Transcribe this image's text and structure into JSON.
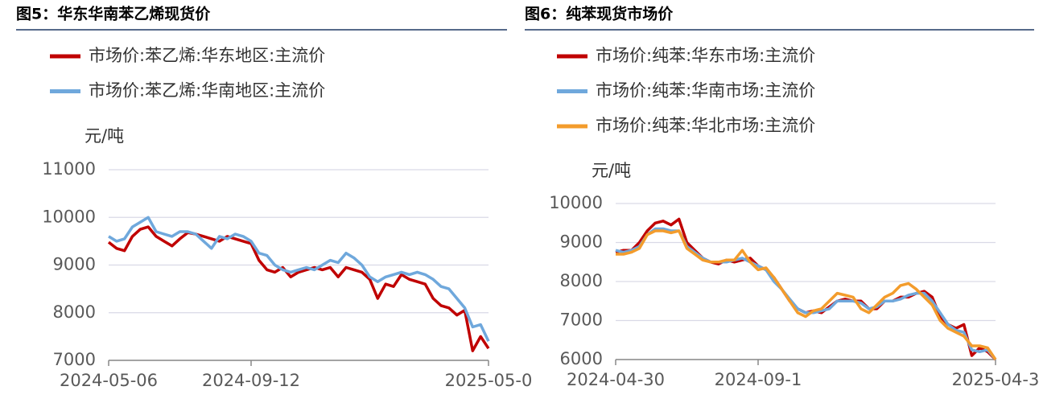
{
  "chart_data": [
    {
      "type": "line",
      "title": "图5：华东华南苯乙烯现货价",
      "y_label": "元/吨",
      "categories": [
        "2024-05-06",
        null,
        null,
        null,
        null,
        null,
        null,
        null,
        null,
        null,
        null,
        null,
        null,
        null,
        null,
        null,
        null,
        null,
        "2024-09-12",
        null,
        null,
        null,
        null,
        null,
        null,
        null,
        null,
        null,
        null,
        null,
        null,
        null,
        null,
        null,
        null,
        null,
        null,
        null,
        null,
        null,
        null,
        null,
        null,
        null,
        null,
        null,
        null,
        null,
        "2025-05-0"
      ],
      "series": [
        {
          "name": "市场价:苯乙烯:华东地区:主流价",
          "color": "#c00000",
          "values": [
            9480,
            9350,
            9300,
            9600,
            9750,
            9800,
            9600,
            9500,
            9400,
            9550,
            9680,
            9650,
            9600,
            9550,
            9500,
            9600,
            9550,
            9500,
            9450,
            9100,
            8900,
            8850,
            8950,
            8750,
            8850,
            8900,
            8950,
            8900,
            8950,
            8750,
            8950,
            8900,
            8850,
            8700,
            8300,
            8600,
            8550,
            8800,
            8700,
            8650,
            8600,
            8300,
            8150,
            8100,
            7950,
            8050,
            7200,
            7500,
            7250
          ]
        },
        {
          "name": "市场价:苯乙烯:华南地区:主流价",
          "color": "#6fa8dc",
          "values": [
            9600,
            9500,
            9550,
            9800,
            9900,
            10000,
            9700,
            9650,
            9600,
            9700,
            9700,
            9650,
            9500,
            9350,
            9600,
            9550,
            9650,
            9600,
            9500,
            9250,
            9200,
            9000,
            8900,
            8850,
            8900,
            8950,
            8900,
            9000,
            9100,
            9050,
            9250,
            9150,
            9000,
            8750,
            8650,
            8750,
            8800,
            8850,
            8800,
            8850,
            8800,
            8700,
            8550,
            8500,
            8300,
            8100,
            7700,
            7750,
            7400
          ]
        }
      ],
      "ylim": [
        7000,
        11000
      ],
      "yticks": [
        7000,
        8000,
        9000,
        10000,
        11000
      ],
      "grid": true
    },
    {
      "type": "line",
      "title": "图6：纯苯现货市场价",
      "y_label": "元/吨",
      "categories": [
        "2024-04-30",
        null,
        null,
        null,
        null,
        null,
        null,
        null,
        null,
        null,
        null,
        null,
        null,
        null,
        null,
        null,
        null,
        null,
        "2024-09-1",
        null,
        null,
        null,
        null,
        null,
        null,
        null,
        null,
        null,
        null,
        null,
        null,
        null,
        null,
        null,
        null,
        null,
        null,
        null,
        null,
        null,
        null,
        null,
        null,
        null,
        null,
        null,
        null,
        null,
        "2025-04-3"
      ],
      "series": [
        {
          "name": "市场价:纯苯:华东市场:主流价",
          "color": "#c00000",
          "values": [
            8750,
            8800,
            8800,
            9000,
            9300,
            9500,
            9550,
            9450,
            9600,
            9000,
            8800,
            8600,
            8500,
            8450,
            8550,
            8500,
            8550,
            8600,
            8400,
            8300,
            8100,
            7800,
            7500,
            7300,
            7200,
            7250,
            7200,
            7350,
            7500,
            7550,
            7500,
            7500,
            7300,
            7300,
            7500,
            7500,
            7600,
            7600,
            7700,
            7750,
            7600,
            7100,
            6900,
            6800,
            6900,
            6100,
            6300,
            6200,
            6000
          ]
        },
        {
          "name": "市场价:纯苯:华南市场:主流价",
          "color": "#6fa8dc",
          "values": [
            8800,
            8750,
            8800,
            8900,
            9200,
            9350,
            9350,
            9300,
            9300,
            8900,
            8750,
            8600,
            8500,
            8500,
            8500,
            8550,
            8600,
            8500,
            8400,
            8300,
            8000,
            7800,
            7550,
            7300,
            7200,
            7200,
            7250,
            7300,
            7500,
            7500,
            7500,
            7450,
            7300,
            7350,
            7500,
            7500,
            7550,
            7650,
            7700,
            7700,
            7500,
            7200,
            6900,
            6750,
            6700,
            6250,
            6200,
            6250,
            6000
          ]
        },
        {
          "name": "市场价:纯苯:华北市场:主流价",
          "color": "#f39c2c",
          "values": [
            8700,
            8700,
            8750,
            8850,
            9200,
            9300,
            9300,
            9250,
            9300,
            8850,
            8700,
            8550,
            8500,
            8500,
            8550,
            8550,
            8800,
            8500,
            8300,
            8350,
            8100,
            7800,
            7500,
            7200,
            7100,
            7250,
            7300,
            7500,
            7700,
            7650,
            7600,
            7300,
            7200,
            7400,
            7600,
            7700,
            7900,
            7950,
            7800,
            7600,
            7400,
            7000,
            6800,
            6700,
            6600,
            6350,
            6350,
            6300,
            6000
          ]
        }
      ],
      "ylim": [
        6000,
        10000
      ],
      "yticks": [
        6000,
        7000,
        8000,
        9000,
        10000
      ],
      "grid": true
    }
  ]
}
